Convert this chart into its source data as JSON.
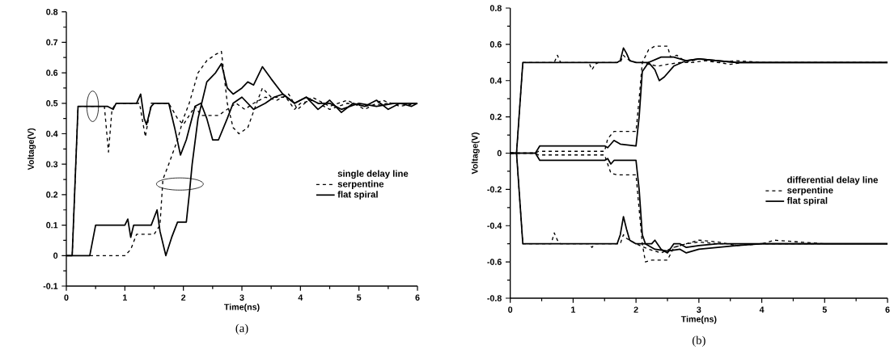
{
  "chart_data": [
    {
      "type": "line",
      "xlabel": "Time(ns)",
      "ylabel": "Voltage(V)",
      "legend_title": "single delay line",
      "legend": "right",
      "xlim": [
        0,
        6
      ],
      "xticks": [
        0,
        1,
        2,
        3,
        4,
        5,
        6
      ],
      "ylim": [
        -0.1,
        0.8
      ],
      "yticks": [
        -0.1,
        0,
        0.1,
        0.2,
        0.3,
        0.4,
        0.5,
        0.6,
        0.7,
        0.8
      ],
      "annotations": [
        "(a)"
      ],
      "series": [
        {
          "name": "serpentine",
          "color": "#000000",
          "line_style": "dashed",
          "x": [
            0,
            0.1,
            0.2,
            0.65,
            0.72,
            0.78,
            0.85,
            1.25,
            1.35,
            1.45,
            1.75,
            1.9,
            2.0,
            2.1,
            2.2,
            2.3,
            2.6,
            2.75,
            2.9,
            3.05,
            3.2,
            3.4,
            3.6,
            3.8,
            3.95,
            4.2,
            4.5,
            4.8,
            5.1,
            5.4,
            5.7,
            6
          ],
          "values": [
            0,
            0,
            0.49,
            0.49,
            0.34,
            0.48,
            0.5,
            0.5,
            0.39,
            0.5,
            0.5,
            0.45,
            0.43,
            0.46,
            0.49,
            0.46,
            0.46,
            0.48,
            0.5,
            0.48,
            0.5,
            0.52,
            0.51,
            0.53,
            0.48,
            0.52,
            0.49,
            0.51,
            0.48,
            0.51,
            0.49,
            0.5
          ]
        },
        {
          "name": "flat spiral",
          "color": "#000000",
          "line_style": "solid",
          "x": [
            0,
            0.1,
            0.2,
            0.5,
            0.7,
            0.8,
            0.85,
            1.2,
            1.27,
            1.33,
            1.37,
            1.45,
            1.5,
            1.75,
            1.85,
            1.95,
            2.05,
            2.2,
            2.3,
            2.4,
            2.5,
            2.6,
            2.75,
            2.85,
            3.0,
            3.2,
            3.4,
            3.55,
            3.7,
            3.9,
            4.1,
            4.3,
            4.5,
            4.7,
            4.9,
            5.1,
            5.3,
            5.5,
            5.7,
            5.9,
            6
          ],
          "values": [
            0,
            0,
            0.49,
            0.49,
            0.49,
            0.48,
            0.5,
            0.5,
            0.53,
            0.45,
            0.43,
            0.49,
            0.5,
            0.5,
            0.42,
            0.33,
            0.38,
            0.49,
            0.5,
            0.45,
            0.38,
            0.38,
            0.45,
            0.5,
            0.52,
            0.48,
            0.5,
            0.52,
            0.53,
            0.5,
            0.52,
            0.48,
            0.51,
            0.47,
            0.5,
            0.49,
            0.51,
            0.48,
            0.5,
            0.49,
            0.5
          ]
        },
        {
          "color": "#000000",
          "line_style": "dashed",
          "x": [
            0.4,
            0.5,
            1.0,
            1.1,
            1.2,
            1.5,
            1.6,
            1.65,
            1.75,
            1.9,
            2.0,
            2.1,
            2.25,
            2.4,
            2.55,
            2.65,
            2.75,
            2.85,
            2.95,
            3.1,
            3.25,
            3.35,
            3.5,
            3.75,
            3.9,
            4.0,
            4.2,
            4.5,
            4.8,
            5.1,
            5.5,
            6
          ],
          "values": [
            0,
            0,
            0,
            0.02,
            0.07,
            0.07,
            0.1,
            0.25,
            0.3,
            0.38,
            0.45,
            0.5,
            0.6,
            0.64,
            0.66,
            0.67,
            0.5,
            0.42,
            0.4,
            0.42,
            0.5,
            0.55,
            0.52,
            0.52,
            0.48,
            0.5,
            0.51,
            0.48,
            0.5,
            0.49,
            0.5,
            0.5
          ]
        },
        {
          "color": "#000000",
          "line_style": "solid",
          "x": [
            0,
            0.4,
            0.5,
            1.0,
            1.05,
            1.1,
            1.15,
            1.45,
            1.55,
            1.6,
            1.7,
            1.8,
            1.9,
            2.05,
            2.1,
            2.15,
            2.25,
            2.4,
            2.55,
            2.65,
            2.75,
            2.85,
            3.0,
            3.1,
            3.2,
            3.35,
            3.5,
            3.7,
            3.9,
            4.1,
            4.3,
            4.5,
            4.7,
            5.0,
            5.3,
            5.6,
            6
          ],
          "values": [
            0,
            0,
            0.1,
            0.1,
            0.12,
            0.06,
            0.1,
            0.1,
            0.15,
            0.08,
            0,
            0.06,
            0.11,
            0.11,
            0.2,
            0.3,
            0.45,
            0.57,
            0.6,
            0.63,
            0.55,
            0.53,
            0.55,
            0.57,
            0.56,
            0.62,
            0.58,
            0.53,
            0.5,
            0.52,
            0.5,
            0.5,
            0.48,
            0.5,
            0.49,
            0.5,
            0.5
          ]
        }
      ]
    },
    {
      "type": "line",
      "xlabel": "Time(ns)",
      "ylabel": "Voltage(V)",
      "legend_title": "differential delay line",
      "legend": "right",
      "xlim": [
        0,
        6
      ],
      "xticks": [
        0,
        1,
        2,
        3,
        4,
        5,
        6
      ],
      "ylim": [
        -0.8,
        0.8
      ],
      "yticks": [
        -0.8,
        -0.6,
        -0.4,
        -0.2,
        0,
        0.2,
        0.4,
        0.6,
        0.8
      ],
      "annotations": [
        "(b)"
      ],
      "series": [
        {
          "name": "serpentine",
          "color": "#000000",
          "line_style": "dashed",
          "x": [
            0,
            0.1,
            0.2,
            0.7,
            0.75,
            0.8,
            1.25,
            1.3,
            1.35,
            1.4,
            1.75,
            1.8,
            1.85,
            2.0,
            2.1,
            2.2,
            2.35,
            2.5,
            2.7,
            2.9,
            3.1,
            3.3,
            3.5,
            3.7,
            4.0,
            4.5,
            5,
            6
          ],
          "values": [
            0,
            0,
            0.5,
            0.5,
            0.54,
            0.5,
            0.5,
            0.46,
            0.49,
            0.5,
            0.5,
            0.54,
            0.52,
            0.5,
            0.5,
            0.49,
            0.48,
            0.49,
            0.5,
            0.5,
            0.51,
            0.5,
            0.49,
            0.5,
            0.5,
            0.5,
            0.5,
            0.5
          ]
        },
        {
          "name": "flat spiral",
          "color": "#000000",
          "line_style": "solid",
          "x": [
            0,
            0.1,
            0.2,
            1.7,
            1.75,
            1.8,
            1.85,
            1.9,
            2.0,
            2.2,
            2.3,
            2.37,
            2.45,
            2.6,
            2.8,
            3.0,
            3.3,
            3.6,
            4.0,
            4.5,
            5,
            6
          ],
          "values": [
            0,
            0,
            0.5,
            0.5,
            0.51,
            0.58,
            0.55,
            0.51,
            0.5,
            0.5,
            0.46,
            0.4,
            0.42,
            0.48,
            0.51,
            0.52,
            0.51,
            0.5,
            0.5,
            0.5,
            0.5,
            0.5
          ]
        },
        {
          "color": "#000000",
          "line_style": "dashed",
          "x": [
            0,
            0.4,
            0.45,
            1.5,
            1.55,
            1.65,
            2.0,
            2.05,
            2.1,
            2.2,
            2.3,
            2.5,
            2.55,
            2.65,
            2.8,
            3.0,
            3.3,
            3.6,
            4.0,
            5,
            6
          ],
          "values": [
            0,
            0,
            0.01,
            0.01,
            0.08,
            0.12,
            0.12,
            0.3,
            0.5,
            0.57,
            0.59,
            0.59,
            0.53,
            0.54,
            0.5,
            0.52,
            0.5,
            0.51,
            0.5,
            0.5,
            0.5
          ]
        },
        {
          "color": "#000000",
          "line_style": "solid",
          "x": [
            0,
            0.4,
            0.47,
            1.5,
            1.55,
            1.65,
            1.75,
            2.0,
            2.05,
            2.1,
            2.2,
            2.4,
            2.6,
            2.8,
            3.0,
            3.3,
            3.6,
            4.0,
            5,
            6
          ],
          "values": [
            0,
            0,
            0.04,
            0.04,
            0.03,
            0.07,
            0.05,
            0.04,
            0.2,
            0.45,
            0.5,
            0.53,
            0.53,
            0.51,
            0.52,
            0.51,
            0.5,
            0.5,
            0.5,
            0.5
          ]
        },
        {
          "color": "#000000",
          "line_style": "dashed",
          "x": [
            0,
            0.1,
            0.2,
            0.65,
            0.7,
            0.75,
            0.8,
            1.25,
            1.3,
            1.35,
            1.75,
            1.8,
            1.85,
            2.0,
            2.2,
            2.4,
            2.6,
            2.8,
            3.0,
            3.3,
            3.6,
            4.0,
            4.2,
            5,
            6
          ],
          "values": [
            0,
            0,
            -0.5,
            -0.5,
            -0.44,
            -0.48,
            -0.5,
            -0.5,
            -0.52,
            -0.5,
            -0.5,
            -0.45,
            -0.47,
            -0.5,
            -0.53,
            -0.55,
            -0.52,
            -0.5,
            -0.48,
            -0.49,
            -0.51,
            -0.5,
            -0.48,
            -0.5,
            -0.5
          ]
        },
        {
          "color": "#000000",
          "line_style": "solid",
          "x": [
            0,
            0.1,
            0.2,
            1.7,
            1.75,
            1.8,
            1.85,
            1.9,
            2.0,
            2.1,
            2.25,
            2.3,
            2.4,
            2.5,
            2.6,
            2.7,
            2.8,
            3.0,
            3.3,
            3.6,
            4.0,
            5,
            6
          ],
          "values": [
            0,
            0,
            -0.5,
            -0.5,
            -0.45,
            -0.35,
            -0.42,
            -0.48,
            -0.5,
            -0.5,
            -0.5,
            -0.48,
            -0.53,
            -0.55,
            -0.5,
            -0.5,
            -0.52,
            -0.51,
            -0.5,
            -0.5,
            -0.5,
            -0.5,
            -0.5
          ]
        },
        {
          "color": "#000000",
          "line_style": "dashed",
          "x": [
            0,
            0.4,
            0.45,
            1.5,
            1.55,
            1.6,
            1.7,
            2.0,
            2.1,
            2.15,
            2.25,
            2.5,
            2.6,
            2.8,
            3.0,
            3.3,
            3.6,
            4.0,
            5,
            6
          ],
          "values": [
            0,
            0,
            -0.01,
            -0.01,
            -0.06,
            -0.11,
            -0.12,
            -0.12,
            -0.5,
            -0.6,
            -0.59,
            -0.59,
            -0.52,
            -0.5,
            -0.49,
            -0.5,
            -0.5,
            -0.5,
            -0.5,
            -0.5
          ]
        },
        {
          "color": "#000000",
          "line_style": "solid",
          "x": [
            0,
            0.4,
            0.47,
            1.5,
            1.55,
            1.6,
            1.65,
            2.0,
            2.05,
            2.1,
            2.15,
            2.3,
            2.5,
            2.7,
            2.8,
            3.0,
            3.3,
            3.6,
            4.0,
            5,
            6
          ],
          "values": [
            0,
            0,
            -0.04,
            -0.04,
            -0.03,
            -0.06,
            -0.04,
            -0.04,
            -0.2,
            -0.45,
            -0.5,
            -0.53,
            -0.54,
            -0.53,
            -0.55,
            -0.53,
            -0.52,
            -0.51,
            -0.5,
            -0.5,
            -0.5
          ]
        }
      ]
    }
  ]
}
